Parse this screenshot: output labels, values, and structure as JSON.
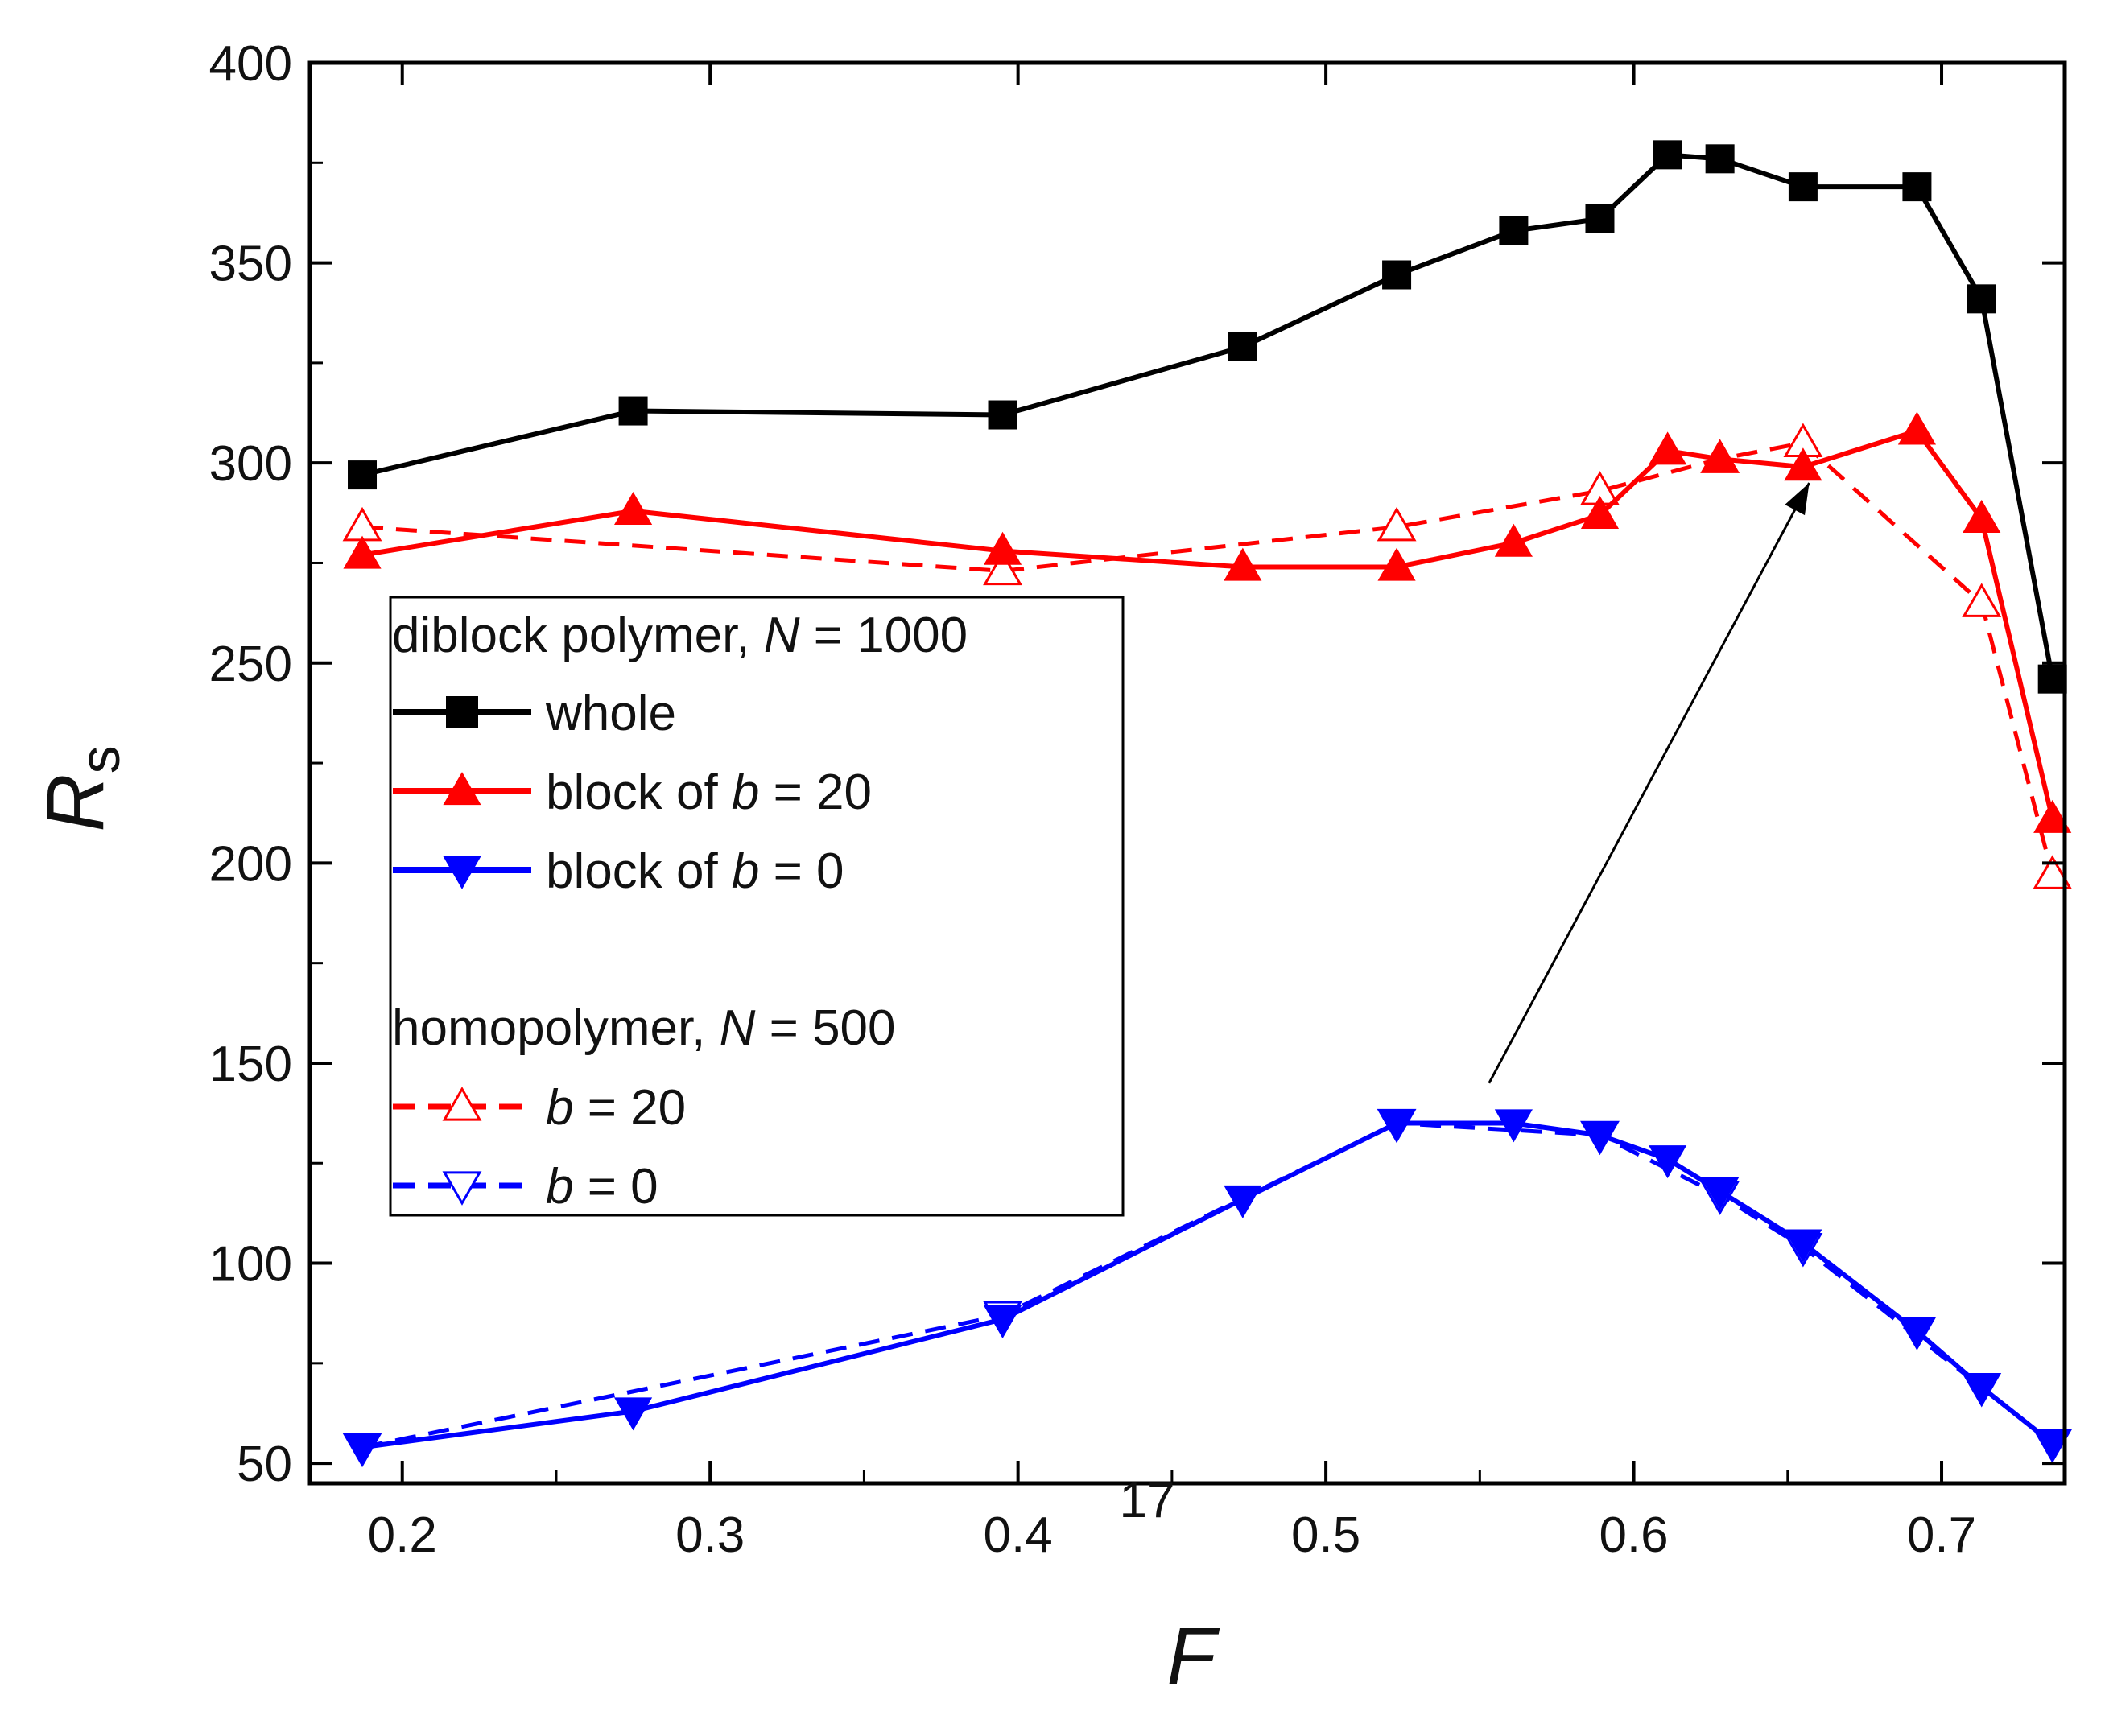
{
  "chart_data": {
    "type": "line",
    "title": "",
    "xlabel": "F",
    "ylabel_main": "R",
    "ylabel_sub": "s",
    "xlim": [
      0.17,
      0.74
    ],
    "ylim": [
      45,
      400
    ],
    "x_ticks": [
      0.2,
      0.3,
      0.4,
      0.5,
      0.6,
      0.7
    ],
    "x_tick_labels": [
      "0.2",
      "0.3",
      "0.4",
      "0.5",
      "0.6",
      "0.7"
    ],
    "y_ticks": [
      50,
      100,
      150,
      200,
      250,
      300,
      350,
      400
    ],
    "y_tick_labels": [
      "50",
      "100",
      "150",
      "200",
      "250",
      "300",
      "350",
      "400"
    ],
    "grid": false,
    "annotation": "17",
    "arrow": {
      "from": [
        0.553,
        145
      ],
      "to": [
        0.657,
        295
      ]
    },
    "series": [
      {
        "name": "whole",
        "color": "#000000",
        "marker": "square",
        "filled": true,
        "dashed": false,
        "x": [
          0.187,
          0.275,
          0.395,
          0.473,
          0.523,
          0.561,
          0.589,
          0.611,
          0.628,
          0.655,
          0.692,
          0.713,
          0.736
        ],
        "y": [
          297,
          313,
          312,
          329,
          347,
          358,
          361,
          377,
          376,
          369,
          369,
          341,
          246
        ]
      },
      {
        "name": "block of b = 20",
        "color": "#ff0000",
        "marker": "triangle-up",
        "filled": true,
        "dashed": false,
        "x": [
          0.187,
          0.275,
          0.395,
          0.473,
          0.523,
          0.561,
          0.589,
          0.611,
          0.628,
          0.655,
          0.692,
          0.713,
          0.736
        ],
        "y": [
          277,
          288,
          278,
          274,
          274,
          280,
          287,
          303,
          301,
          299,
          308,
          286,
          211
        ]
      },
      {
        "name": "block of b = 0",
        "color": "#0000ff",
        "marker": "triangle-down",
        "filled": true,
        "dashed": false,
        "x": [
          0.187,
          0.275,
          0.395,
          0.473,
          0.523,
          0.561,
          0.589,
          0.611,
          0.628,
          0.655,
          0.692,
          0.713,
          0.736
        ],
        "y": [
          54,
          63,
          86,
          116,
          135,
          135,
          132,
          126,
          118,
          105,
          83,
          69,
          55
        ]
      },
      {
        "name": "b = 20 (homopolymer)",
        "color": "#ff0000",
        "marker": "triangle-up",
        "filled": false,
        "dashed": true,
        "x": [
          0.187,
          0.395,
          0.523,
          0.589,
          0.628,
          0.655,
          0.713,
          0.736
        ],
        "y": [
          284,
          273,
          284,
          293,
          301,
          305,
          265,
          197
        ]
      },
      {
        "name": "b = 0 (homopolymer)",
        "color": "#0000ff",
        "marker": "triangle-down",
        "filled": false,
        "dashed": true,
        "x": [
          0.187,
          0.395,
          0.523,
          0.589,
          0.628,
          0.655,
          0.713,
          0.736
        ],
        "y": [
          54,
          87,
          135,
          132,
          117,
          104,
          69,
          55
        ]
      }
    ],
    "legend": {
      "placement": "left",
      "group1_title": {
        "prefix": "diblock polymer, ",
        "var": "N",
        "suffix": " = 1000"
      },
      "group2_title": {
        "prefix": "homopolymer, ",
        "var": "N",
        "suffix": " = 500"
      },
      "entries": [
        {
          "prefix": "whole",
          "var": "",
          "suffix": ""
        },
        {
          "prefix": "block of ",
          "var": "b",
          "suffix": " = 20"
        },
        {
          "prefix": "block of ",
          "var": "b",
          "suffix": " = 0"
        },
        {
          "prefix": "",
          "var": "b",
          "suffix": " = 20"
        },
        {
          "prefix": "",
          "var": "b",
          "suffix": " = 0"
        }
      ]
    }
  }
}
